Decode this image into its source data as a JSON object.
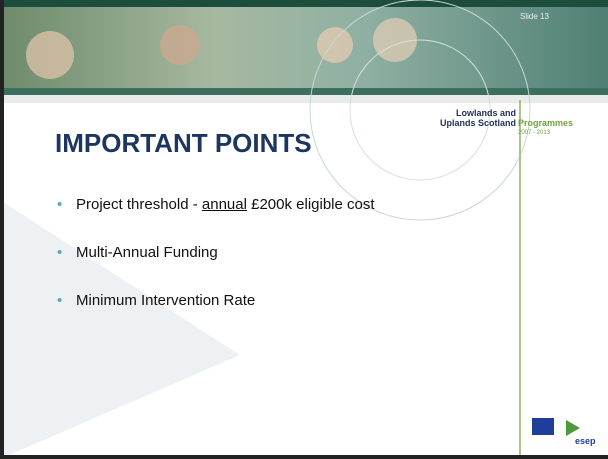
{
  "header": {
    "slide_number": "Slide 13",
    "brand": {
      "line1": "Lowlands and",
      "line2": "Uplands Scotland",
      "programmes": "Programmes",
      "years": "2007 - 2013"
    }
  },
  "title": "IMPORTANT POINTS",
  "bullets": [
    {
      "segments": [
        {
          "text": "Project threshold - "
        },
        {
          "text": "annual",
          "underline": true
        },
        {
          "text": " £200k eligible cost"
        }
      ]
    },
    {
      "segments": [
        {
          "text": "Multi-Annual Funding"
        }
      ]
    },
    {
      "segments": [
        {
          "text": "Minimum Intervention Rate"
        }
      ]
    }
  ],
  "footer": {
    "logo": "esep"
  }
}
